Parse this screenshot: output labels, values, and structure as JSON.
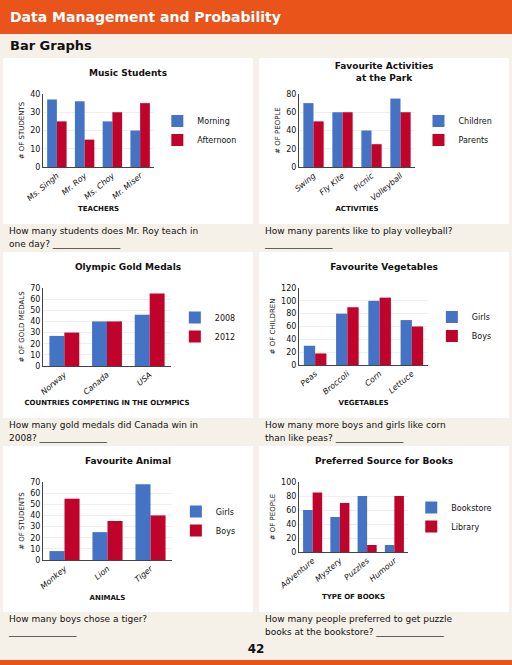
{
  "title": "Data Management and Probability",
  "subtitle": "Bar Graphs",
  "annotations": [
    "42"
  ],
  "chart_data": [
    {
      "type": "bar",
      "title": "Music Students",
      "xlabel": "TEACHERS",
      "ylabel": "# OF STUDENTS",
      "categories": [
        "Ms. Singh",
        "Mr. Roy",
        "Ms. Choy",
        "Mr. Miser"
      ],
      "series": [
        {
          "name": "Morning",
          "color": "#4472C4",
          "values": [
            37,
            36,
            25,
            20
          ]
        },
        {
          "name": "Afternoon",
          "color": "#C0032B",
          "values": [
            25,
            15,
            30,
            35
          ]
        }
      ],
      "ylim": [
        0,
        40
      ],
      "yticks": [
        0,
        10,
        20,
        30,
        40
      ],
      "grid": true,
      "legend": "right",
      "annotations": [
        "How many students does Mr. Roy teach in",
        "one day? _______________"
      ]
    },
    {
      "type": "bar",
      "title": "Favourite Activities\nat the Park",
      "xlabel": "ACTIVITIES",
      "ylabel": "# OF PEOPLE",
      "categories": [
        "Swing",
        "Fly Kite",
        "Picnic",
        "Volleyball"
      ],
      "series": [
        {
          "name": "Children",
          "color": "#4472C4",
          "values": [
            70,
            60,
            40,
            75
          ]
        },
        {
          "name": "Parents",
          "color": "#C0032B",
          "values": [
            50,
            60,
            25,
            60
          ]
        }
      ],
      "ylim": [
        0,
        80
      ],
      "yticks": [
        0,
        20,
        40,
        60,
        80
      ],
      "grid": true,
      "legend": "right",
      "annotations": [
        "How many parents like to play volleyball?",
        "_______________"
      ]
    },
    {
      "type": "bar",
      "title": "Olympic Gold Medals",
      "xlabel": "COUNTRIES COMPETING IN THE OLYMPICS",
      "ylabel": "# OF GOLD MEDALS",
      "categories": [
        "Norway",
        "Canada",
        "USA"
      ],
      "series": [
        {
          "name": "2008",
          "color": "#4472C4",
          "values": [
            27,
            40,
            46
          ]
        },
        {
          "name": "2012",
          "color": "#C0032B",
          "values": [
            30,
            40,
            65
          ]
        }
      ],
      "ylim": [
        0,
        70
      ],
      "yticks": [
        0,
        10,
        20,
        30,
        40,
        50,
        60,
        70
      ],
      "grid": true,
      "legend": "right",
      "annotations": [
        "How many gold medals did Canada win in",
        "2008? _______________"
      ]
    },
    {
      "type": "bar",
      "title": "Favourite Vegetables",
      "xlabel": "VEGETABLES",
      "ylabel": "# OF CHILDREN",
      "categories": [
        "Peas",
        "Broccoli",
        "Corn",
        "Lettuce"
      ],
      "series": [
        {
          "name": "Girls",
          "color": "#4472C4",
          "values": [
            30,
            80,
            100,
            70
          ]
        },
        {
          "name": "Boys",
          "color": "#C0032B",
          "values": [
            18,
            90,
            105,
            60
          ]
        }
      ],
      "ylim": [
        0,
        120
      ],
      "yticks": [
        0,
        20,
        40,
        60,
        80,
        100,
        120
      ],
      "grid": true,
      "legend": "right",
      "annotations": [
        "How many more boys and girls like corn",
        "than like peas? _______________"
      ]
    },
    {
      "type": "bar",
      "title": "Favourite Animal",
      "xlabel": "ANIMALS",
      "ylabel": "# OF STUDENTS",
      "categories": [
        "Monkey",
        "Lion",
        "Tiger"
      ],
      "series": [
        {
          "name": "Girls",
          "color": "#4472C4",
          "values": [
            8,
            25,
            68
          ]
        },
        {
          "name": "Boys",
          "color": "#C0032B",
          "values": [
            55,
            35,
            40
          ]
        }
      ],
      "ylim": [
        0,
        70
      ],
      "yticks": [
        0,
        10,
        20,
        30,
        40,
        50,
        60,
        70
      ],
      "grid": true,
      "legend": "right",
      "annotations": [
        "How many boys chose a tiger?",
        "_______________"
      ]
    },
    {
      "type": "bar",
      "title": "Preferred Source for Books",
      "xlabel": "TYPE OF BOOKS",
      "ylabel": "# OF PEOPLE",
      "categories": [
        "Adventure",
        "Mystery",
        "Puzzles",
        "Humour"
      ],
      "series": [
        {
          "name": "Bookstore",
          "color": "#4472C4",
          "values": [
            60,
            50,
            80,
            10
          ]
        },
        {
          "name": "Library",
          "color": "#C0032B",
          "values": [
            85,
            70,
            10,
            80
          ]
        }
      ],
      "ylim": [
        0,
        100
      ],
      "yticks": [
        0,
        20,
        40,
        60,
        80,
        100
      ],
      "grid": true,
      "legend": "right",
      "annotations": [
        "How many people preferred to get puzzle",
        "books at the bookstore? _______________"
      ]
    }
  ]
}
